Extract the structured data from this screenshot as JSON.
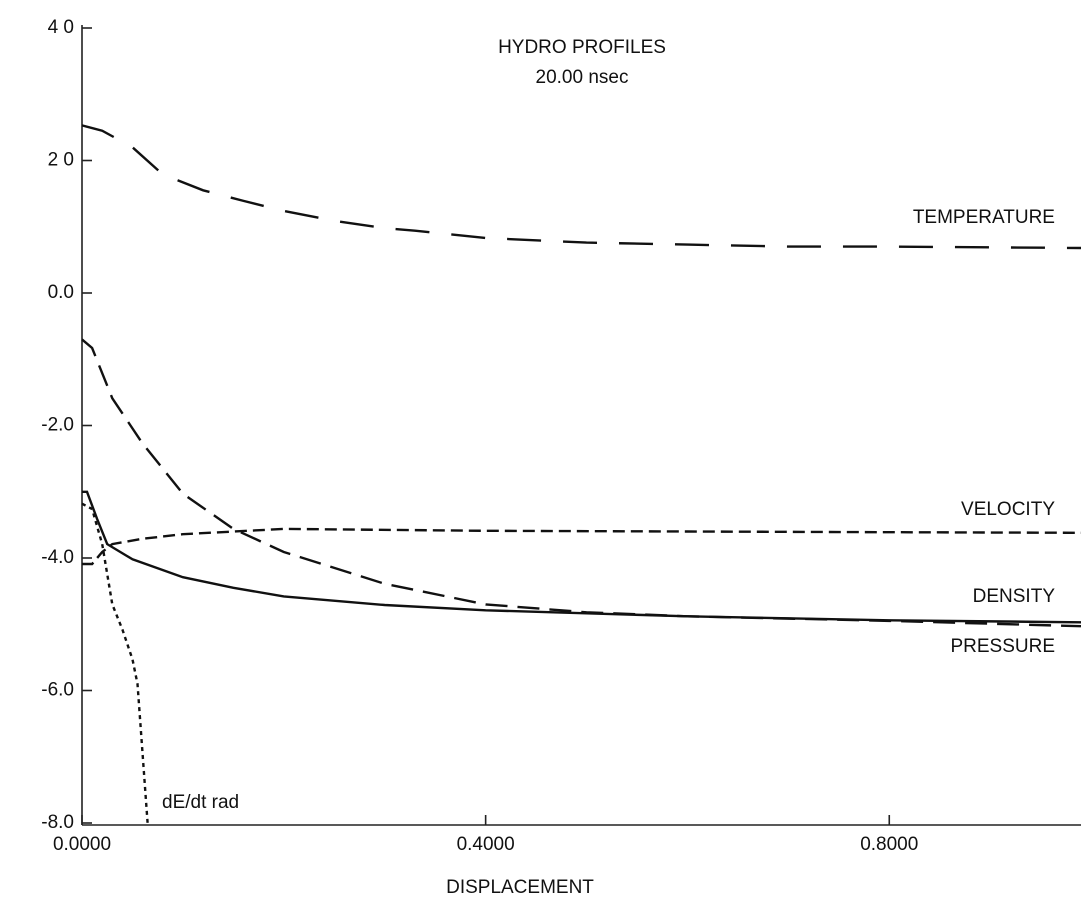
{
  "chart_data": {
    "type": "line",
    "title": "HYDRO PROFILES",
    "subtitle": "20.00 nsec",
    "x_label": "DISPLACEMENT",
    "xlim": [
      0,
      0.99
    ],
    "ylim": [
      -8,
      4
    ],
    "xticks": [
      {
        "value": 0,
        "label": "0.0000"
      },
      {
        "value": 0.4,
        "label": "0.4000"
      },
      {
        "value": 0.8,
        "label": "0.8000"
      }
    ],
    "yticks": [
      {
        "value": 4,
        "label": "4 0"
      },
      {
        "value": 2,
        "label": "2 0"
      },
      {
        "value": 0,
        "label": "0.0"
      },
      {
        "value": -2,
        "label": "-2.0"
      },
      {
        "value": -4,
        "label": "-4.0"
      },
      {
        "value": -6,
        "label": "-6.0"
      },
      {
        "value": -8,
        "label": "-8.0"
      }
    ],
    "grid": false,
    "series": [
      {
        "name": "TEMPERATURE",
        "color": "#111111",
        "dash": "long",
        "x": [
          0,
          0.02,
          0.05,
          0.08,
          0.12,
          0.16,
          0.2,
          0.25,
          0.3,
          0.33,
          0.4,
          0.5,
          0.6,
          0.7,
          0.8,
          0.99
        ],
        "values": [
          2.53,
          2.45,
          2.2,
          1.79,
          1.55,
          1.39,
          1.24,
          1.09,
          0.98,
          0.94,
          0.83,
          0.76,
          0.73,
          0.7,
          0.7,
          0.68
        ]
      },
      {
        "name": "VELOCITY",
        "color": "#111111",
        "dash": "short",
        "x": [
          0,
          0.01,
          0.02,
          0.03,
          0.06,
          0.1,
          0.2,
          0.4,
          0.6,
          0.8,
          0.99
        ],
        "values": [
          -4.09,
          -4.09,
          -3.91,
          -3.79,
          -3.71,
          -3.64,
          -3.56,
          -3.59,
          -3.6,
          -3.61,
          -3.62
        ]
      },
      {
        "name": "DENSITY",
        "color": "#111111",
        "dash": "solid",
        "x": [
          0,
          0.005,
          0.015,
          0.025,
          0.05,
          0.1,
          0.15,
          0.2,
          0.3,
          0.4,
          0.6,
          0.8,
          0.99
        ],
        "values": [
          -3.0,
          -3.0,
          -3.41,
          -3.79,
          -4.02,
          -4.29,
          -4.45,
          -4.58,
          -4.71,
          -4.79,
          -4.88,
          -4.94,
          -4.97
        ]
      },
      {
        "name": "PRESSURE",
        "color": "#111111",
        "dash": "medium",
        "x": [
          0,
          0.01,
          0.03,
          0.06,
          0.1,
          0.15,
          0.2,
          0.3,
          0.4,
          0.5,
          0.6,
          0.8,
          0.99
        ],
        "values": [
          -0.7,
          -0.83,
          -1.59,
          -2.27,
          -3.03,
          -3.56,
          -3.91,
          -4.39,
          -4.7,
          -4.82,
          -4.88,
          -4.95,
          -5.03
        ]
      },
      {
        "name": "dE/dt rad",
        "color": "#111111",
        "dash": "dotted",
        "x": [
          0,
          0.01,
          0.02,
          0.03,
          0.04,
          0.05,
          0.055,
          0.065
        ],
        "values": [
          -3.18,
          -3.26,
          -3.79,
          -4.7,
          -5.08,
          -5.53,
          -5.9,
          -8.0
        ]
      }
    ]
  }
}
